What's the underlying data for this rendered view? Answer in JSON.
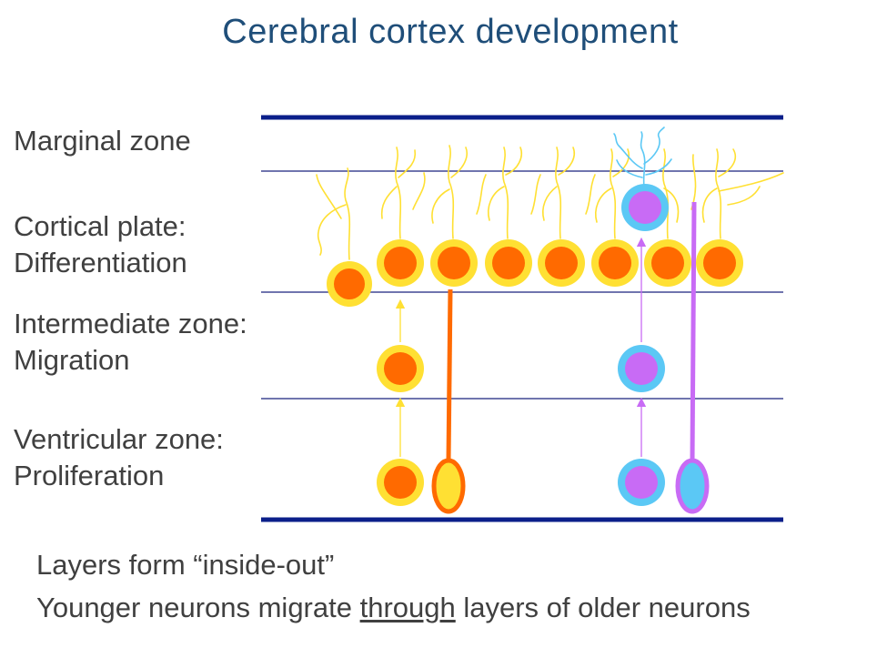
{
  "slide": {
    "title": "Cerebral cortex development"
  },
  "zones": [
    {
      "line1": "Marginal zone",
      "line2": ""
    },
    {
      "line1": "Cortical plate:",
      "line2": "Differentiation"
    },
    {
      "line1": "Intermediate zone:",
      "line2": "Migration"
    },
    {
      "line1": "Ventricular zone:",
      "line2": "Proliferation"
    }
  ],
  "bullets": {
    "first": "Layers form “inside-out”",
    "second_before": "Younger neurons migrate ",
    "second_underlined": "through",
    "second_after": " layers of older neurons"
  },
  "colors": {
    "title": "#1f4e79",
    "boundary_thick": "#0b1f8a",
    "boundary_thin": "#1a237e",
    "older_neuron_fill": "#ff6a00",
    "older_neuron_ring": "#ffe033",
    "younger_neuron_fill": "#c86bf5",
    "younger_neuron_ring": "#5bc8f5",
    "older_radial_glia": "#ff6a00",
    "younger_radial_glia": "#c86bf5",
    "dendrite_old": "#ffe033",
    "dendrite_young": "#5bc8f5"
  }
}
